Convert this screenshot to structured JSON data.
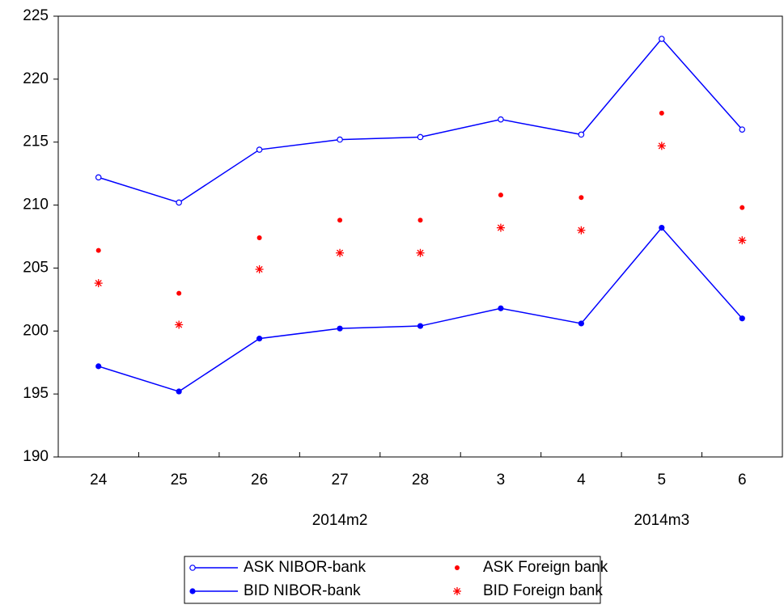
{
  "chart_data": {
    "type": "line",
    "categories": [
      "24",
      "25",
      "26",
      "27",
      "28",
      "3",
      "4",
      "5",
      "6"
    ],
    "category_groups": [
      null,
      null,
      null,
      "2014m2",
      null,
      null,
      null,
      "2014m3",
      null
    ],
    "ylim": [
      190,
      225
    ],
    "yticks": [
      190,
      195,
      200,
      205,
      210,
      215,
      220,
      225
    ],
    "legend": "bottom",
    "series": [
      {
        "name": "ASK NIBOR-bank",
        "color": "#0000ff",
        "line": true,
        "marker": "open-circle",
        "values": [
          212.2,
          210.2,
          214.4,
          215.2,
          215.4,
          216.8,
          215.6,
          223.2,
          216.0
        ]
      },
      {
        "name": "BID NIBOR-bank",
        "color": "#0000ff",
        "line": true,
        "marker": "filled-circle",
        "values": [
          197.2,
          195.2,
          199.4,
          200.2,
          200.4,
          201.8,
          200.6,
          208.2,
          201.0
        ]
      },
      {
        "name": "ASK Foreign bank",
        "color": "#ff0000",
        "line": false,
        "marker": "dot",
        "values": [
          206.4,
          203.0,
          207.4,
          208.8,
          208.8,
          210.8,
          210.6,
          217.3,
          209.8
        ]
      },
      {
        "name": "BID Foreign bank",
        "color": "#ff0000",
        "line": false,
        "marker": "asterisk",
        "values": [
          203.8,
          200.5,
          204.9,
          206.2,
          206.2,
          208.2,
          208.0,
          214.7,
          207.2
        ]
      }
    ]
  }
}
